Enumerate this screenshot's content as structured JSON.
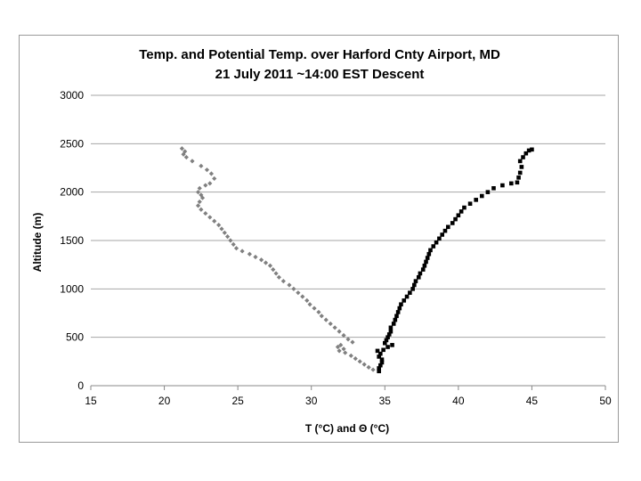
{
  "chart_data": {
    "type": "scatter",
    "title": "Temp. and Potential Temp. over Harford Cnty Airport, MD",
    "subtitle": "21 July 2011  ~14:00 EST Descent",
    "xlabel": "T (°C) and Θ (°C)",
    "ylabel": "Altitude (m)",
    "xlim": [
      15,
      50
    ],
    "ylim": [
      0,
      3000
    ],
    "xticks": [
      15,
      20,
      25,
      30,
      35,
      40,
      45,
      50
    ],
    "yticks": [
      0,
      500,
      1000,
      1500,
      2000,
      2500,
      3000
    ],
    "grid": "horizontal",
    "legend": "none",
    "series": [
      {
        "color": "#808080",
        "marker": "diamond",
        "points": [
          [
            21.2,
            2450
          ],
          [
            21.4,
            2420
          ],
          [
            21.3,
            2390
          ],
          [
            21.5,
            2360
          ],
          [
            21.9,
            2320
          ],
          [
            22.5,
            2270
          ],
          [
            22.9,
            2230
          ],
          [
            23.2,
            2190
          ],
          [
            23.4,
            2140
          ],
          [
            23.1,
            2090
          ],
          [
            22.8,
            2070
          ],
          [
            22.4,
            2040
          ],
          [
            22.3,
            2000
          ],
          [
            22.5,
            1970
          ],
          [
            22.6,
            1940
          ],
          [
            22.4,
            1900
          ],
          [
            22.3,
            1860
          ],
          [
            22.5,
            1820
          ],
          [
            22.8,
            1780
          ],
          [
            23.1,
            1740
          ],
          [
            23.4,
            1700
          ],
          [
            23.7,
            1660
          ],
          [
            23.9,
            1620
          ],
          [
            24.1,
            1580
          ],
          [
            24.3,
            1540
          ],
          [
            24.5,
            1500
          ],
          [
            24.7,
            1460
          ],
          [
            24.9,
            1420
          ],
          [
            25.3,
            1390
          ],
          [
            25.8,
            1360
          ],
          [
            26.2,
            1330
          ],
          [
            26.6,
            1300
          ],
          [
            26.9,
            1270
          ],
          [
            27.2,
            1240
          ],
          [
            27.4,
            1200
          ],
          [
            27.6,
            1160
          ],
          [
            27.8,
            1120
          ],
          [
            28.1,
            1080
          ],
          [
            28.5,
            1040
          ],
          [
            28.8,
            1000
          ],
          [
            29.1,
            960
          ],
          [
            29.4,
            920
          ],
          [
            29.7,
            880
          ],
          [
            29.9,
            840
          ],
          [
            30.2,
            800
          ],
          [
            30.5,
            760
          ],
          [
            30.7,
            720
          ],
          [
            31.0,
            680
          ],
          [
            31.3,
            640
          ],
          [
            31.6,
            600
          ],
          [
            31.9,
            560
          ],
          [
            32.2,
            520
          ],
          [
            32.5,
            480
          ],
          [
            32.8,
            450
          ],
          [
            32.0,
            420
          ],
          [
            31.8,
            400
          ],
          [
            32.2,
            380
          ],
          [
            31.9,
            360
          ],
          [
            32.3,
            340
          ],
          [
            32.7,
            310
          ],
          [
            33.0,
            280
          ],
          [
            33.3,
            250
          ],
          [
            33.6,
            220
          ],
          [
            33.9,
            190
          ],
          [
            34.2,
            165
          ]
        ]
      },
      {
        "color": "#000000",
        "marker": "square",
        "points": [
          [
            34.6,
            150
          ],
          [
            34.6,
            180
          ],
          [
            34.7,
            210
          ],
          [
            34.8,
            240
          ],
          [
            34.8,
            270
          ],
          [
            34.6,
            300
          ],
          [
            34.7,
            330
          ],
          [
            34.5,
            360
          ],
          [
            34.9,
            370
          ],
          [
            35.2,
            400
          ],
          [
            35.5,
            420
          ],
          [
            35.0,
            440
          ],
          [
            35.1,
            470
          ],
          [
            35.2,
            500
          ],
          [
            35.3,
            530
          ],
          [
            35.4,
            560
          ],
          [
            35.4,
            600
          ],
          [
            35.6,
            640
          ],
          [
            35.7,
            680
          ],
          [
            35.8,
            720
          ],
          [
            35.9,
            760
          ],
          [
            36.0,
            800
          ],
          [
            36.1,
            840
          ],
          [
            36.3,
            880
          ],
          [
            36.5,
            920
          ],
          [
            36.7,
            960
          ],
          [
            36.9,
            1000
          ],
          [
            37.0,
            1040
          ],
          [
            37.1,
            1080
          ],
          [
            37.3,
            1120
          ],
          [
            37.4,
            1160
          ],
          [
            37.6,
            1200
          ],
          [
            37.7,
            1240
          ],
          [
            37.8,
            1280
          ],
          [
            37.9,
            1320
          ],
          [
            38.0,
            1360
          ],
          [
            38.1,
            1400
          ],
          [
            38.3,
            1440
          ],
          [
            38.5,
            1480
          ],
          [
            38.7,
            1520
          ],
          [
            38.9,
            1560
          ],
          [
            39.1,
            1600
          ],
          [
            39.3,
            1640
          ],
          [
            39.6,
            1680
          ],
          [
            39.8,
            1720
          ],
          [
            40.0,
            1760
          ],
          [
            40.2,
            1800
          ],
          [
            40.4,
            1840
          ],
          [
            40.8,
            1880
          ],
          [
            41.2,
            1920
          ],
          [
            41.6,
            1960
          ],
          [
            42.0,
            2000
          ],
          [
            42.4,
            2040
          ],
          [
            43.0,
            2070
          ],
          [
            43.6,
            2090
          ],
          [
            44.0,
            2100
          ],
          [
            44.1,
            2150
          ],
          [
            44.2,
            2200
          ],
          [
            44.3,
            2260
          ],
          [
            44.2,
            2320
          ],
          [
            44.4,
            2360
          ],
          [
            44.6,
            2400
          ],
          [
            44.8,
            2430
          ],
          [
            45.0,
            2440
          ]
        ]
      }
    ]
  }
}
